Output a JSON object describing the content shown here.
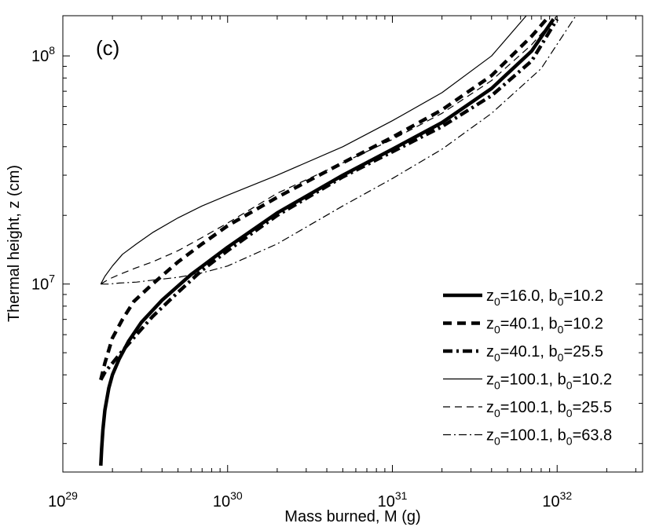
{
  "chart_data": {
    "type": "line",
    "panel_label": "(c)",
    "xlabel": "Mass burned, M (g)",
    "ylabel": "Thermal height, z (cm)",
    "x_scale": "log",
    "y_scale": "log",
    "xlim": [
      1e+29,
      3.3e+32
    ],
    "ylim": [
      1500000.0,
      150000000.0
    ],
    "grid": false,
    "legend_position": "lower-right",
    "x_ticks": [
      {
        "value": 1e+29,
        "base": "10",
        "exp": "29"
      },
      {
        "value": 1e+30,
        "base": "10",
        "exp": "30"
      },
      {
        "value": 1e+31,
        "base": "10",
        "exp": "31"
      },
      {
        "value": 1e+32,
        "base": "10",
        "exp": "32"
      }
    ],
    "y_ticks": [
      {
        "value": 10000000.0,
        "base": "10",
        "exp": "7"
      },
      {
        "value": 100000000.0,
        "base": "10",
        "exp": "8"
      }
    ],
    "series": [
      {
        "name": "z0=16.0, b0=10.2",
        "legend": {
          "z_sub": "0",
          "z_val": "=16.0, b",
          "b_sub": "0",
          "b_val": "=10.2"
        },
        "style": "solid",
        "weight": "thick",
        "x": [
          1.7e+29,
          1.72e+29,
          1.75e+29,
          1.8e+29,
          1.9e+29,
          2e+29,
          2.2e+29,
          2.5e+29,
          3e+29,
          4e+29,
          6e+29,
          1e+30,
          2e+30,
          5e+30,
          1e+31,
          2e+31,
          4e+31,
          7e+31,
          9.5e+31
        ],
        "y": [
          1600000.0,
          1900000.0,
          2300000.0,
          2800000.0,
          3500000.0,
          4000000.0,
          4700000.0,
          5600000.0,
          6800000.0,
          8500000.0,
          11000000.0,
          14500000.0,
          20500000.0,
          30000000.0,
          39000000.0,
          51000000.0,
          72000000.0,
          105000000.0,
          145000000.0
        ]
      },
      {
        "name": "z0=40.1, b0=10.2",
        "legend": {
          "z_sub": "0",
          "z_val": "=40.1, b",
          "b_sub": "0",
          "b_val": "=10.2"
        },
        "style": "dashed",
        "weight": "thick",
        "x": [
          1.7e+29,
          1.8e+29,
          2e+29,
          2.3e+29,
          2.7e+29,
          3.5e+29,
          5e+29,
          7e+29,
          1e+30,
          2e+30,
          5e+30,
          1e+31,
          2e+31,
          4e+31,
          7e+31,
          9e+31
        ],
        "y": [
          3800000.0,
          4500000.0,
          5800000.0,
          7000000.0,
          8400000.0,
          10000000.0,
          12500000.0,
          15000000.0,
          18000000.0,
          24000000.0,
          34000000.0,
          44000000.0,
          58000000.0,
          82000000.0,
          122000000.0,
          150000000.0
        ]
      },
      {
        "name": "z0=40.1, b0=25.5",
        "legend": {
          "z_sub": "0",
          "z_val": "=40.1, b",
          "b_sub": "0",
          "b_val": "=25.5"
        },
        "style": "dashdot",
        "weight": "thick",
        "x": [
          1.7e+29,
          1.8e+29,
          2e+29,
          2.3e+29,
          2.8e+29,
          3.5e+29,
          5e+29,
          7e+29,
          1e+30,
          2e+30,
          5e+30,
          1e+31,
          2e+31,
          4e+31,
          7e+31,
          1e+32
        ],
        "y": [
          3800000.0,
          4100000.0,
          4500000.0,
          5100000.0,
          6000000.0,
          7200000.0,
          9200000.0,
          11500000.0,
          14000000.0,
          20000000.0,
          29500000.0,
          38000000.0,
          49000000.0,
          67000000.0,
          95000000.0,
          145000000.0
        ]
      },
      {
        "name": "z0=100.1, b0=10.2",
        "legend": {
          "z_sub": "0",
          "z_val": "=100.1, b",
          "b_sub": "0",
          "b_val": "=10.2"
        },
        "style": "solid",
        "weight": "thin",
        "x": [
          1.7e+29,
          1.8e+29,
          2e+29,
          2.3e+29,
          2.8e+29,
          3.5e+29,
          5e+29,
          7e+29,
          1e+30,
          2e+30,
          5e+30,
          1e+31,
          2e+31,
          4e+31,
          6.5e+31
        ],
        "y": [
          10000000.0,
          10800000.0,
          12000000.0,
          13500000.0,
          15000000.0,
          16800000.0,
          19500000.0,
          22000000.0,
          24500000.0,
          30000000.0,
          40000000.0,
          52000000.0,
          69000000.0,
          100000000.0,
          150000000.0
        ]
      },
      {
        "name": "z0=100.1, b0=25.5",
        "legend": {
          "z_sub": "0",
          "z_val": "=100.1, b",
          "b_sub": "0",
          "b_val": "=25.5"
        },
        "style": "dashed",
        "weight": "thin",
        "x": [
          1.7e+29,
          1.9e+29,
          2.2e+29,
          2.8e+29,
          3.5e+29,
          5e+29,
          7e+29,
          1e+30,
          2e+30,
          5e+30,
          1e+31,
          2e+31,
          4e+31,
          7e+31,
          1e+32
        ],
        "y": [
          10000000.0,
          10500000.0,
          11000000.0,
          11800000.0,
          12500000.0,
          14000000.0,
          16000000.0,
          18500000.0,
          25000000.0,
          34000000.0,
          43000000.0,
          56000000.0,
          78000000.0,
          112000000.0,
          150000000.0
        ]
      },
      {
        "name": "z0=100.1, b0=63.8",
        "legend": {
          "z_sub": "0",
          "z_val": "=100.1, b",
          "b_sub": "0",
          "b_val": "=63.8"
        },
        "style": "dashdot",
        "weight": "thin",
        "x": [
          1.7e+29,
          1.9e+29,
          2.2e+29,
          2.8e+29,
          3.5e+29,
          5e+29,
          7e+29,
          1e+30,
          2e+30,
          5e+30,
          1e+31,
          2e+31,
          4e+31,
          8e+31,
          1.3e+32
        ],
        "y": [
          10000000.0,
          10000000.0,
          10100000.0,
          10200000.0,
          10400000.0,
          10700000.0,
          11200000.0,
          12000000.0,
          15000000.0,
          22000000.0,
          29000000.0,
          39000000.0,
          56000000.0,
          88000000.0,
          150000000.0
        ]
      }
    ]
  }
}
